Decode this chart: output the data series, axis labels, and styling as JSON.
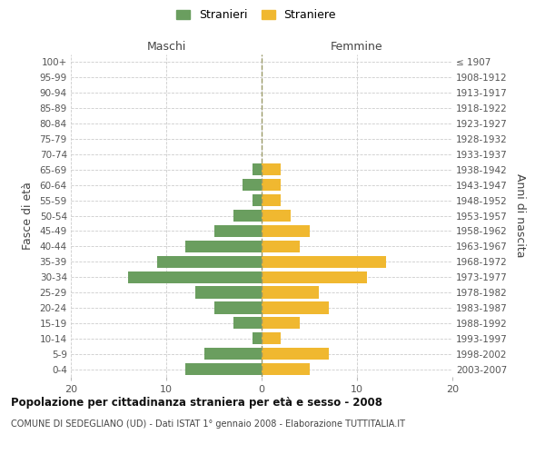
{
  "age_groups": [
    "100+",
    "95-99",
    "90-94",
    "85-89",
    "80-84",
    "75-79",
    "70-74",
    "65-69",
    "60-64",
    "55-59",
    "50-54",
    "45-49",
    "40-44",
    "35-39",
    "30-34",
    "25-29",
    "20-24",
    "15-19",
    "10-14",
    "5-9",
    "0-4"
  ],
  "birth_years": [
    "≤ 1907",
    "1908-1912",
    "1913-1917",
    "1918-1922",
    "1923-1927",
    "1928-1932",
    "1933-1937",
    "1938-1942",
    "1943-1947",
    "1948-1952",
    "1953-1957",
    "1958-1962",
    "1963-1967",
    "1968-1972",
    "1973-1977",
    "1978-1982",
    "1983-1987",
    "1988-1992",
    "1993-1997",
    "1998-2002",
    "2003-2007"
  ],
  "maschi": [
    0,
    0,
    0,
    0,
    0,
    0,
    0,
    1,
    2,
    1,
    3,
    5,
    8,
    11,
    14,
    7,
    5,
    3,
    1,
    6,
    8
  ],
  "femmine": [
    0,
    0,
    0,
    0,
    0,
    0,
    0,
    2,
    2,
    2,
    3,
    5,
    4,
    13,
    11,
    6,
    7,
    4,
    2,
    7,
    5
  ],
  "maschi_color": "#6a9e5f",
  "femmine_color": "#f0b830",
  "background_color": "#ffffff",
  "grid_color": "#cccccc",
  "dashed_line_color": "#999966",
  "xlim": 20,
  "title": "Popolazione per cittadinanza straniera per età e sesso - 2008",
  "subtitle": "COMUNE DI SEDEGLIANO (UD) - Dati ISTAT 1° gennaio 2008 - Elaborazione TUTTITALIA.IT",
  "ylabel_left": "Fasce di età",
  "ylabel_right": "Anni di nascita",
  "header_maschi": "Maschi",
  "header_femmine": "Femmine",
  "legend_maschi": "Stranieri",
  "legend_femmine": "Straniere"
}
